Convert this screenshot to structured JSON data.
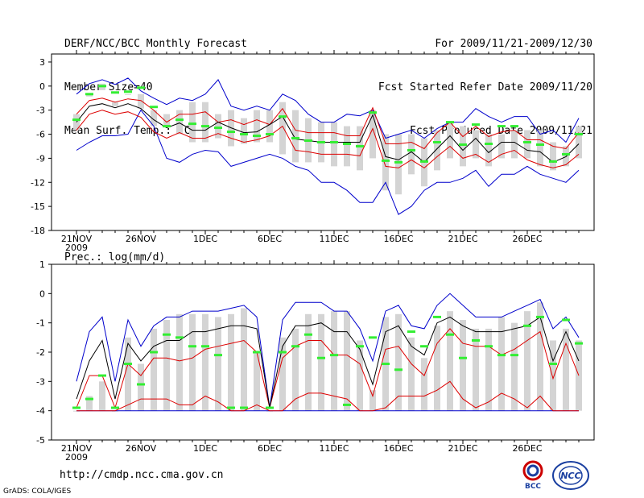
{
  "header": {
    "title": "DERF/NCC/BCC Monthly Forecast",
    "member_size": "Member Size=40",
    "variable_top": "Mean Surf. Temp.: °C",
    "period": "For 2009/11/21-2009/12/30",
    "fcst_started": "Fcst Started Refer Date 2009/11/20",
    "fcst_produced": "Fcst Produced Date 2009/11/21"
  },
  "footer": {
    "url": "http://cmdp.ncc.cma.gov.cn",
    "credit": "GrADS: COLA/IGES",
    "logo_left_text": "BCC",
    "logo_right_text": "NCC"
  },
  "colors": {
    "max_line": "#0000cc",
    "mean_line": "#000000",
    "spread_line": "#dd0000",
    "box": "#d4d4d4",
    "obs_mark": "#33ee33"
  },
  "chart_data": [
    {
      "type": "box-ensemble",
      "id": "temperature",
      "title": "Mean Surf. Temp.: °C",
      "x_tick_labels": [
        "21NOV\n2009",
        "26NOV",
        "1DEC",
        "6DEC",
        "11DEC",
        "16DEC",
        "21DEC",
        "26DEC"
      ],
      "days": 40,
      "ylim": [
        -18,
        4
      ],
      "yticks": [
        3,
        0,
        -3,
        -6,
        -9,
        -12,
        -15,
        -18
      ],
      "series": [
        {
          "name": "max",
          "values": [
            -8,
            -7,
            -6.2,
            -6.2,
            -6,
            -3,
            -5,
            -9,
            -9.5,
            -8.5,
            -8,
            -8.2,
            -10,
            -9.5,
            -9,
            -8.5,
            -9,
            -10,
            -10.5,
            -12,
            -12,
            -13,
            -14.5,
            -14.5,
            -12,
            -16,
            -15,
            -13,
            -12,
            -12,
            -11.5,
            -10.5,
            -12.5,
            -11,
            -11,
            -10,
            -11,
            -11.5,
            -12,
            -10.5
          ]
        },
        {
          "name": "spread_high",
          "values": [
            -3.5,
            -1.8,
            -1.5,
            -2,
            -1.6,
            -1.8,
            -3,
            -4.5,
            -3.5,
            -3.5,
            -3.2,
            -4.5,
            -4.2,
            -4.8,
            -4.2,
            -4.8,
            -2.8,
            -5.5,
            -5.8,
            -5.8,
            -5.8,
            -6.2,
            -6.2,
            -2.7,
            -7.2,
            -7.2,
            -7,
            -7.8,
            -5.8,
            -4.5,
            -6.3,
            -5,
            -6.3,
            -5.7,
            -5.5,
            -6.7,
            -6.7,
            -7.5,
            -7.8,
            -5.8
          ]
        },
        {
          "name": "mean",
          "values": [
            -4.5,
            -2.5,
            -2.2,
            -2.7,
            -2.2,
            -2.8,
            -4.2,
            -5.2,
            -4.6,
            -5.5,
            -5.5,
            -4.5,
            -5.2,
            -5.8,
            -5.7,
            -4.8,
            -3.8,
            -6.6,
            -6.8,
            -7,
            -7,
            -7,
            -7,
            -3.6,
            -8.8,
            -9.2,
            -8.2,
            -9.5,
            -7.8,
            -6.2,
            -8,
            -6.5,
            -8.3,
            -7,
            -7,
            -8,
            -8.2,
            -9.5,
            -8.8,
            -7.2
          ]
        },
        {
          "name": "spread_low",
          "values": [
            -5.5,
            -3.5,
            -3,
            -3.5,
            -3.2,
            -3.9,
            -5.7,
            -6.5,
            -5.8,
            -6.5,
            -6.5,
            -5.9,
            -6.5,
            -7,
            -6.7,
            -6.2,
            -5,
            -8,
            -8.2,
            -8.5,
            -8.5,
            -8.5,
            -8.7,
            -5.3,
            -10,
            -10.2,
            -9.2,
            -10.2,
            -8.8,
            -7.5,
            -9,
            -8.5,
            -9.5,
            -8.5,
            -8,
            -9.2,
            -9.8,
            -10.2,
            -9.8,
            -8.5
          ]
        },
        {
          "name": "min",
          "values": [
            -1,
            0.3,
            0.8,
            0.2,
            1,
            -0.6,
            -1.5,
            -2.3,
            -1.5,
            -1.8,
            -1,
            0.8,
            -2.5,
            -3,
            -2.5,
            -3,
            -1,
            -1.8,
            -3.5,
            -4.5,
            -4.5,
            -3.5,
            -3.7,
            -3,
            -6.5,
            -6,
            -5.5,
            -6.5,
            -5.3,
            -4.5,
            -4.5,
            -2.8,
            -3.8,
            -4.5,
            -3.8,
            -3.8,
            -6,
            -5.5,
            -7,
            -4
          ]
        },
        {
          "name": "box_top",
          "values": [
            -3.5,
            -1,
            -0.5,
            -2,
            -1,
            -1,
            -3,
            -3.5,
            -3,
            -2,
            -2,
            -3.5,
            -3,
            -4,
            -3,
            -3,
            -2,
            -3,
            -4,
            -4.5,
            -4.5,
            -5,
            -5,
            -3,
            -6,
            -6,
            -6,
            -6.5,
            -5.5,
            -4.5,
            -5,
            -5.5,
            -6,
            -6,
            -5.5,
            -5.5,
            -5.5,
            -7,
            -7.5,
            -5
          ]
        },
        {
          "name": "box_bottom",
          "values": [
            -5.5,
            -1.3,
            0.3,
            -2.5,
            -1,
            -2.8,
            -5,
            -5,
            -6,
            -7,
            -7,
            -6.5,
            -7.5,
            -7.2,
            -7,
            -7,
            -8.5,
            -9.5,
            -9.5,
            -9.5,
            -10,
            -10,
            -10.5,
            -9,
            -13,
            -13.5,
            -11,
            -12.5,
            -10.5,
            -9,
            -10,
            -9,
            -10,
            -9,
            -9,
            -9,
            -10,
            -10.5,
            -10,
            -9
          ]
        },
        {
          "name": "obs",
          "values": [
            -4.2,
            -1,
            0,
            -0.8,
            -0.7,
            -0.2,
            -2.6,
            -5,
            -4.2,
            -4.7,
            -5,
            -5.2,
            -5.7,
            -6,
            -6.2,
            -6,
            -3.8,
            -6.5,
            -6.8,
            -7,
            -7,
            -7.2,
            -7.5,
            -3.3,
            -9.3,
            -9.5,
            -8,
            -9.4,
            -7,
            -4.5,
            -7.3,
            -4.8,
            -7.2,
            -5,
            -5,
            -7,
            -7.3,
            -9.4,
            -8.5,
            -6
          ]
        }
      ]
    },
    {
      "type": "box-ensemble",
      "id": "precipitation",
      "title": "Prec.: log(mm/d)",
      "x_tick_labels": [
        "21NOV\n2009",
        "26NOV",
        "1DEC",
        "6DEC",
        "11DEC",
        "16DEC",
        "21DEC",
        "26DEC"
      ],
      "days": 40,
      "ylim": [
        -5,
        1
      ],
      "yticks": [
        1,
        0,
        -1,
        -2,
        -3,
        -4,
        -5
      ],
      "series": [
        {
          "name": "max",
          "values": [
            -3,
            -1.3,
            -0.8,
            -3,
            -0.9,
            -1.8,
            -1.1,
            -0.8,
            -0.8,
            -0.6,
            -0.6,
            -0.6,
            -0.5,
            -0.4,
            -0.8,
            -3.9,
            -0.9,
            -0.3,
            -0.3,
            -0.3,
            -0.6,
            -0.6,
            -1.2,
            -2.3,
            -0.6,
            -0.4,
            -1.1,
            -1.2,
            -0.4,
            0,
            -0.4,
            -0.8,
            -0.8,
            -0.8,
            -0.6,
            -0.4,
            -0.2,
            -1.2,
            -0.8,
            -1.5
          ]
        },
        {
          "name": "mean",
          "values": [
            -3.6,
            -2.3,
            -1.6,
            -3.6,
            -1.7,
            -2.3,
            -1.8,
            -1.6,
            -1.6,
            -1.3,
            -1.3,
            -1.2,
            -1.1,
            -1.1,
            -1.2,
            -3.9,
            -1.8,
            -1.1,
            -1.1,
            -1,
            -1.3,
            -1.3,
            -1.9,
            -3.1,
            -1.3,
            -1.1,
            -1.8,
            -2.1,
            -1,
            -0.8,
            -1.1,
            -1.3,
            -1.3,
            -1.3,
            -1.2,
            -1.1,
            -0.8,
            -2.3,
            -1.3,
            -2.3
          ]
        },
        {
          "name": "spread_high",
          "values": [
            -3.9,
            -2.8,
            -2.8,
            -3.9,
            -2.4,
            -2.8,
            -2.2,
            -2.2,
            -2.3,
            -2.2,
            -1.9,
            -1.8,
            -1.7,
            -1.6,
            -2,
            -3.9,
            -2.2,
            -1.8,
            -1.6,
            -1.6,
            -2.1,
            -2.1,
            -2.4,
            -3.5,
            -1.9,
            -1.8,
            -2.4,
            -2.8,
            -1.7,
            -1.2,
            -1.7,
            -1.8,
            -1.8,
            -2.1,
            -1.9,
            -1.6,
            -1.3,
            -2.9,
            -1.7,
            -2.8
          ]
        },
        {
          "name": "spread_low",
          "values": [
            -4,
            -4,
            -4,
            -4,
            -3.8,
            -3.6,
            -3.6,
            -3.6,
            -3.8,
            -3.8,
            -3.5,
            -3.7,
            -4,
            -4,
            -3.8,
            -4,
            -4,
            -3.6,
            -3.4,
            -3.4,
            -3.5,
            -3.6,
            -4,
            -4,
            -3.9,
            -3.5,
            -3.5,
            -3.5,
            -3.3,
            -3,
            -3.6,
            -3.9,
            -3.7,
            -3.4,
            -3.6,
            -3.9,
            -3.5,
            -4,
            -4,
            -4
          ]
        },
        {
          "name": "min",
          "values": [
            -4,
            -4,
            -4,
            -4,
            -4,
            -4,
            -4,
            -4,
            -4,
            -4,
            -4,
            -4,
            -4,
            -4,
            -4,
            -4,
            -4,
            -4,
            -4,
            -4,
            -4,
            -4,
            -4,
            -4,
            -4,
            -4,
            -4,
            -4,
            -4,
            -4,
            -4,
            -4,
            -4,
            -4,
            -4,
            -4,
            -4,
            -4,
            -4,
            -4
          ]
        },
        {
          "name": "box_top",
          "values": [
            -4,
            -3.5,
            -3,
            -4,
            -1.5,
            -2.4,
            -1.2,
            -0.9,
            -0.7,
            -0.7,
            -0.7,
            -0.8,
            -0.7,
            -0.5,
            -2,
            -4,
            -1.5,
            -1.2,
            -0.7,
            -0.7,
            -0.6,
            -0.6,
            -1.6,
            -3.3,
            -0.8,
            -0.7,
            -1.5,
            -2.2,
            -1.1,
            -0.6,
            -0.9,
            -1.2,
            -1.2,
            -0.8,
            -1,
            -0.6,
            -0.3,
            -1.6,
            -1.2,
            -1.6
          ]
        },
        {
          "name": "box_bottom",
          "values": [
            -4,
            -4,
            -4,
            -4,
            -4,
            -4,
            -4,
            -4,
            -4,
            -4,
            -4,
            -4,
            -4,
            -4,
            -4,
            -4,
            -4,
            -4,
            -4,
            -4,
            -4,
            -4,
            -4,
            -4,
            -4,
            -4,
            -4,
            -4,
            -4,
            -4,
            -4,
            -4,
            -4,
            -4,
            -4,
            -4,
            -4,
            -4,
            -4,
            -4
          ]
        },
        {
          "name": "obs",
          "values": [
            -3.9,
            -3.6,
            -2.8,
            -3.9,
            -2.4,
            -3.1,
            -2,
            -1.4,
            -1.5,
            -1.8,
            -1.8,
            -2.1,
            -3.9,
            -3.9,
            -2,
            -3.9,
            -2,
            -1.8,
            -1.4,
            -2.2,
            -2.1,
            -3.8,
            -1.8,
            -1.5,
            -2.4,
            -2.6,
            -1.3,
            -1.8,
            -0.8,
            -1.4,
            -2.2,
            -1.6,
            -1.8,
            -2.1,
            -2.1,
            -1.1,
            -0.8,
            -2.4,
            -0.9,
            -1.7
          ]
        }
      ]
    }
  ]
}
